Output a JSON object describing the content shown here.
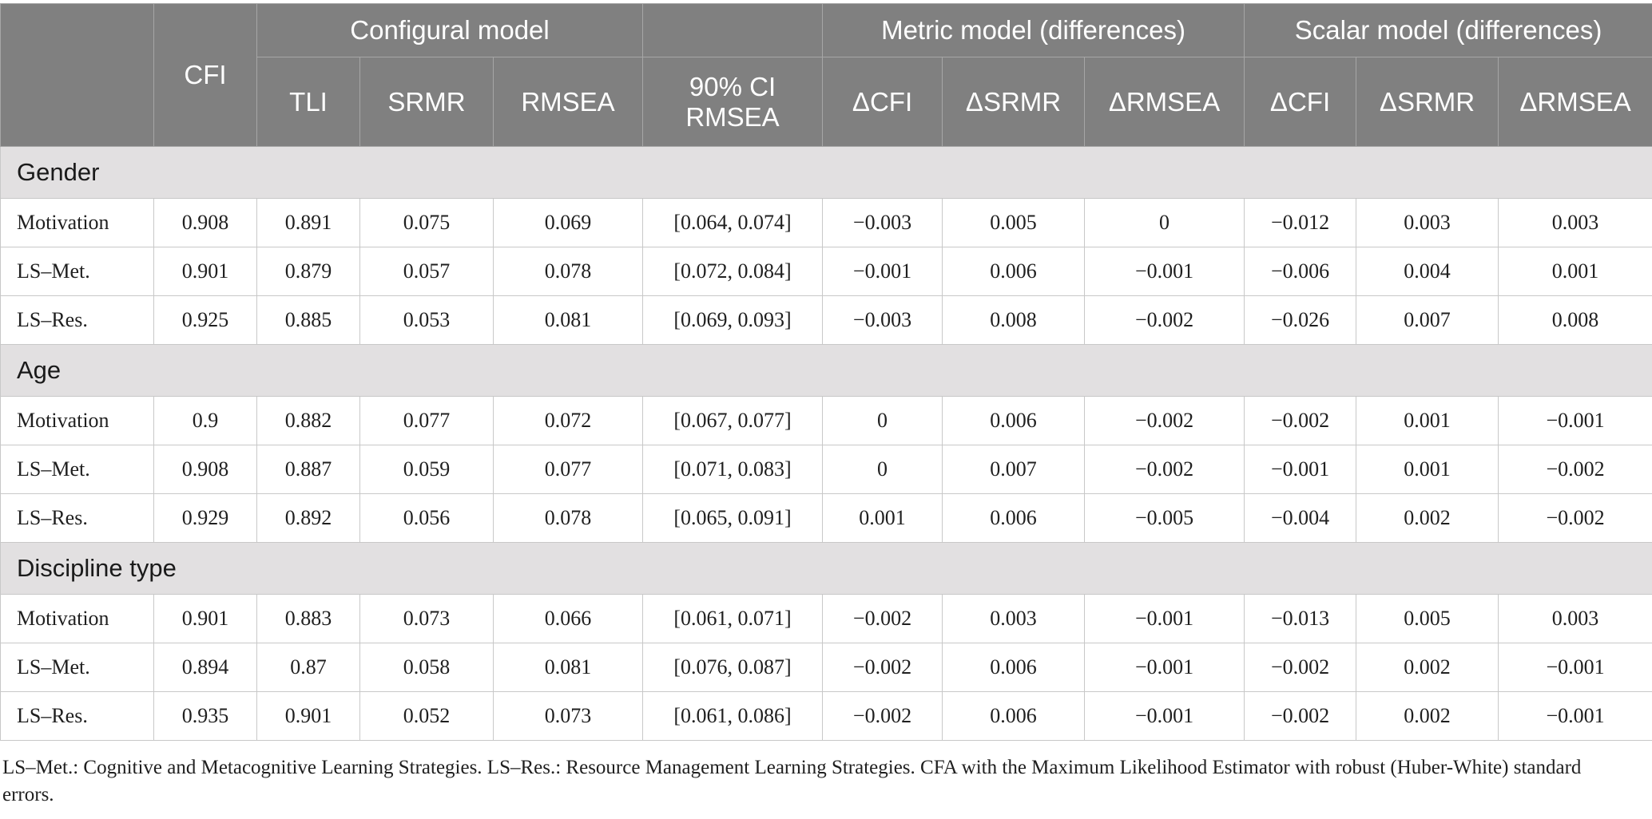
{
  "header": {
    "cfi": "CFI",
    "configural": "Configural model",
    "metric": "Metric model (differences)",
    "scalar": "Scalar model (differences)",
    "columns": [
      "TLI",
      "SRMR",
      "RMSEA",
      "90% CI\nRMSEA",
      "ΔCFI",
      "ΔSRMR",
      "ΔRMSEA",
      "ΔCFI",
      "ΔSRMR",
      "ΔRMSEA"
    ]
  },
  "groups": [
    {
      "name": "Gender",
      "rows": [
        [
          "Motivation",
          "0.908",
          "0.891",
          "0.075",
          "0.069",
          "[0.064, 0.074]",
          "−0.003",
          "0.005",
          "0",
          "−0.012",
          "0.003",
          "0.003"
        ],
        [
          "LS–Met.",
          "0.901",
          "0.879",
          "0.057",
          "0.078",
          "[0.072, 0.084]",
          "−0.001",
          "0.006",
          "−0.001",
          "−0.006",
          "0.004",
          "0.001"
        ],
        [
          "LS–Res.",
          "0.925",
          "0.885",
          "0.053",
          "0.081",
          "[0.069, 0.093]",
          "−0.003",
          "0.008",
          "−0.002",
          "−0.026",
          "0.007",
          "0.008"
        ]
      ]
    },
    {
      "name": "Age",
      "rows": [
        [
          "Motivation",
          "0.9",
          "0.882",
          "0.077",
          "0.072",
          "[0.067, 0.077]",
          "0",
          "0.006",
          "−0.002",
          "−0.002",
          "0.001",
          "−0.001"
        ],
        [
          "LS–Met.",
          "0.908",
          "0.887",
          "0.059",
          "0.077",
          "[0.071, 0.083]",
          "0",
          "0.007",
          "−0.002",
          "−0.001",
          "0.001",
          "−0.002"
        ],
        [
          "LS–Res.",
          "0.929",
          "0.892",
          "0.056",
          "0.078",
          "[0.065, 0.091]",
          "0.001",
          "0.006",
          "−0.005",
          "−0.004",
          "0.002",
          "−0.002"
        ]
      ]
    },
    {
      "name": "Discipline type",
      "rows": [
        [
          "Motivation",
          "0.901",
          "0.883",
          "0.073",
          "0.066",
          "[0.061, 0.071]",
          "−0.002",
          "0.003",
          "−0.001",
          "−0.013",
          "0.005",
          "0.003"
        ],
        [
          "LS–Met.",
          "0.894",
          "0.87",
          "0.058",
          "0.081",
          "[0.076, 0.087]",
          "−0.002",
          "0.006",
          "−0.001",
          "−0.002",
          "0.002",
          "−0.001"
        ],
        [
          "LS–Res.",
          "0.935",
          "0.901",
          "0.052",
          "0.073",
          "[0.061, 0.086]",
          "−0.002",
          "0.006",
          "−0.001",
          "−0.002",
          "0.002",
          "−0.001"
        ]
      ]
    }
  ],
  "footnote": "LS–Met.: Cognitive and Metacognitive Learning Strategies. LS–Res.: Resource Management Learning Strategies. CFA with the Maximum Likelihood Estimator with robust (Huber-White) standard errors."
}
